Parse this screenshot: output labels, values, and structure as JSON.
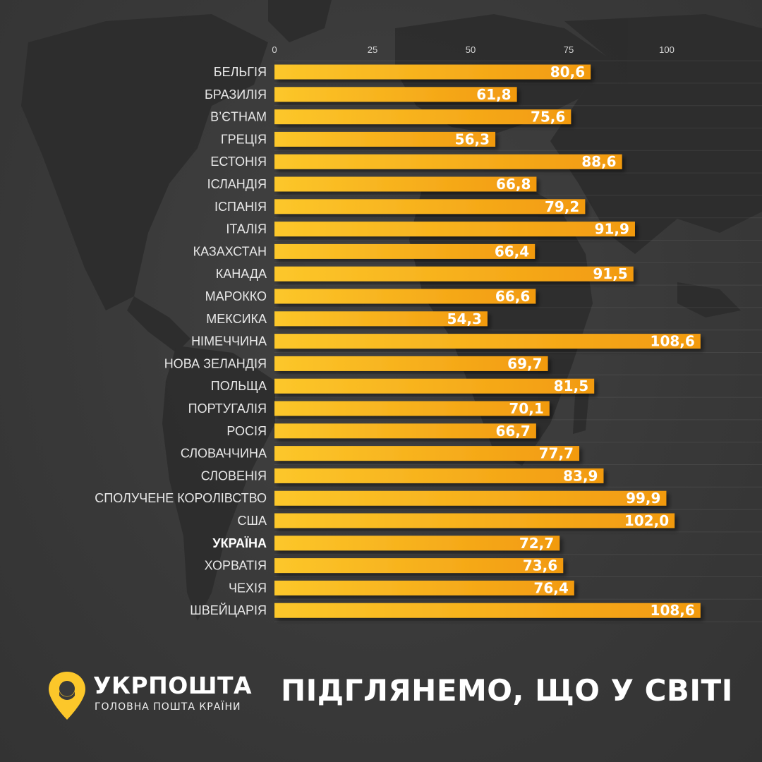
{
  "colors": {
    "background": "#3a3a3a",
    "bar_start": "#fcc72a",
    "bar_end": "#f29a10",
    "text": "#ffffff",
    "label": "#e8e8e8",
    "brand_yellow": "#fcc72a"
  },
  "icons": {
    "logo": "location-pin-icon"
  },
  "chart_data": {
    "type": "bar",
    "orientation": "horizontal",
    "title": "",
    "xlabel": "",
    "ylabel": "",
    "xlim": [
      0,
      100
    ],
    "ticks": [
      0,
      25,
      50,
      75,
      100
    ],
    "grid": true,
    "highlight_category": "УКРАЇНА",
    "categories": [
      "БЕЛЬГІЯ",
      "БРАЗИЛІЯ",
      "В’ЄТНАМ",
      "ГРЕЦІЯ",
      "ЕСТОНІЯ",
      "ІСЛАНДІЯ",
      "ІСПАНІЯ",
      "ІТАЛІЯ",
      "КАЗАХСТАН",
      "КАНАДА",
      "МАРОККО",
      "МЕКСИКА",
      "НІМЕЧЧИНА",
      "НОВА ЗЕЛАНДІЯ",
      "ПОЛЬЩА",
      "ПОРТУГАЛІЯ",
      "РОСІЯ",
      "СЛОВАЧЧИНА",
      "СЛОВЕНІЯ",
      "СПОЛУЧЕНЕ КОРОЛІВСТВО",
      "США",
      "УКРАЇНА",
      "ХОРВАТІЯ",
      "ЧЕХІЯ",
      "ШВЕЙЦАРІЯ"
    ],
    "values": [
      80.6,
      61.8,
      75.6,
      56.3,
      88.6,
      66.8,
      79.2,
      91.9,
      66.4,
      91.5,
      66.6,
      54.3,
      108.6,
      69.7,
      81.5,
      70.1,
      66.7,
      77.7,
      83.9,
      99.9,
      102.0,
      72.7,
      73.6,
      76.4,
      108.6
    ],
    "value_labels": [
      "80,6",
      "61,8",
      "75,6",
      "56,3",
      "88,6",
      "66,8",
      "79,2",
      "91,9",
      "66,4",
      "91,5",
      "66,6",
      "54,3",
      "108,6",
      "69,7",
      "81,5",
      "70,1",
      "66,7",
      "77,7",
      "83,9",
      "99,9",
      "102,0",
      "72,7",
      "73,6",
      "76,4",
      "108,6"
    ]
  },
  "footer": {
    "brand_name": "УКРПОШТА",
    "tagline": "ГОЛОВНА ПОШТА КРАЇНИ",
    "headline": "ПІДГЛЯНЕМО, ЩО У СВІТІ"
  }
}
